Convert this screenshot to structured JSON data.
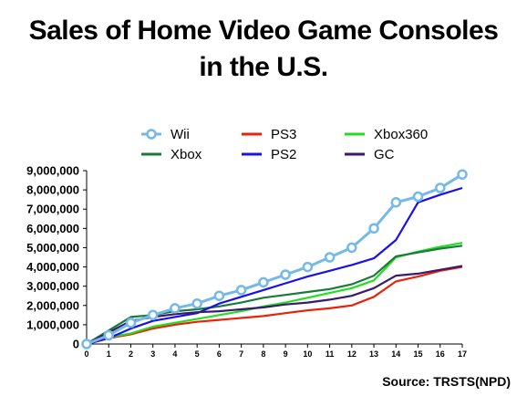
{
  "chart_data": {
    "type": "line",
    "title_lines": [
      "Sales of Home Video Game Consoles",
      "in the U.S."
    ],
    "source": "Source: TRSTS(NPD)",
    "xlabel": "",
    "ylabel": "",
    "x": [
      0,
      1,
      2,
      3,
      4,
      5,
      6,
      7,
      8,
      9,
      10,
      11,
      12,
      13,
      14,
      15,
      16,
      17
    ],
    "xlim": [
      0,
      17
    ],
    "ylim": [
      0,
      9000000
    ],
    "yticks": [
      0,
      1000000,
      2000000,
      3000000,
      4000000,
      5000000,
      6000000,
      7000000,
      8000000,
      9000000
    ],
    "ytick_labels": [
      "0",
      "1,000,000",
      "2,000,000",
      "3,000,000",
      "4,000,000",
      "5,000,000",
      "6,000,000",
      "7,000,000",
      "8,000,000",
      "9,000,000"
    ],
    "grid": false,
    "legend_position": "top",
    "series": [
      {
        "name": "Wii",
        "color": "#74b9e8",
        "markers": true,
        "values": [
          0,
          450000,
          1100000,
          1500000,
          1850000,
          2100000,
          2500000,
          2800000,
          3200000,
          3600000,
          4000000,
          4500000,
          5000000,
          6000000,
          7350000,
          7650000,
          8100000,
          8800000
        ]
      },
      {
        "name": "PS3",
        "color": "#e8230a",
        "markers": false,
        "values": [
          0,
          300000,
          500000,
          800000,
          1000000,
          1150000,
          1250000,
          1350000,
          1450000,
          1600000,
          1750000,
          1850000,
          2000000,
          2450000,
          3250000,
          3500000,
          3800000,
          4000000
        ]
      },
      {
        "name": "Xbox360",
        "color": "#22dd22",
        "markers": false,
        "values": [
          0,
          350000,
          550000,
          900000,
          1100000,
          1300000,
          1500000,
          1700000,
          1950000,
          2150000,
          2400000,
          2650000,
          2900000,
          3300000,
          4500000,
          4800000,
          5050000,
          5250000
        ]
      },
      {
        "name": "Xbox",
        "color": "#1a7a3a",
        "markers": false,
        "values": [
          0,
          700000,
          1400000,
          1500000,
          1700000,
          1800000,
          1950000,
          2150000,
          2400000,
          2550000,
          2700000,
          2850000,
          3100000,
          3550000,
          4550000,
          4750000,
          4950000,
          5100000
        ]
      },
      {
        "name": "PS2",
        "color": "#1a10e8",
        "markers": false,
        "values": [
          0,
          300000,
          800000,
          1200000,
          1400000,
          1600000,
          2100000,
          2450000,
          2800000,
          3150000,
          3500000,
          3800000,
          4100000,
          4450000,
          5400000,
          7350000,
          7750000,
          8100000
        ]
      },
      {
        "name": "GC",
        "color": "#3a1a6a",
        "markers": false,
        "values": [
          0,
          600000,
          1200000,
          1400000,
          1550000,
          1650000,
          1700000,
          1800000,
          1900000,
          2050000,
          2150000,
          2300000,
          2500000,
          2900000,
          3550000,
          3650000,
          3850000,
          4050000
        ]
      }
    ]
  }
}
